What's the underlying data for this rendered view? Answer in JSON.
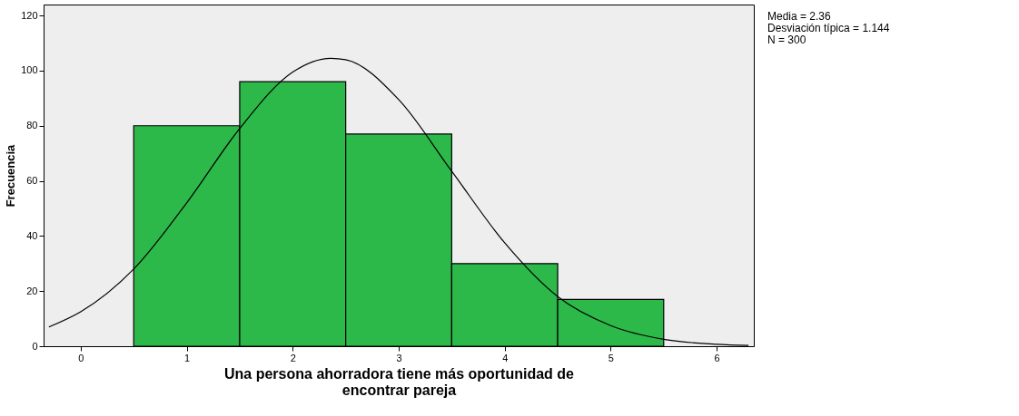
{
  "chart_data": {
    "type": "histogram",
    "xlabel": "Una persona ahorradora tiene más oportunidad de\nencontrar pareja",
    "ylabel": "Frecuencia",
    "bins": [
      0.5,
      1.5,
      2.5,
      3.5,
      4.5,
      5.5
    ],
    "values": [
      80,
      96,
      77,
      30,
      17
    ],
    "color": "#2db84a",
    "series": [
      {
        "type": "line",
        "color": "#000000",
        "x": [
          -0.3,
          0,
          0.5,
          1,
          1.5,
          2,
          2.36,
          2.5,
          3,
          3.5,
          4,
          4.5,
          5,
          5.5,
          6,
          6.3
        ],
        "values": [
          7,
          12.5,
          28,
          52,
          79,
          99.5,
          104.5,
          104,
          89.5,
          63.5,
          37.5,
          18,
          7.5,
          2.5,
          0.7,
          0.3
        ]
      }
    ],
    "xlim": [
      -0.35,
      6.35
    ],
    "xticks": [
      0,
      1,
      2,
      3,
      4,
      5,
      6
    ],
    "ylim": [
      0,
      124
    ],
    "yticks": [
      0,
      20,
      40,
      60,
      80,
      100,
      120
    ],
    "grid": false,
    "annotations": [
      "Media = 2.36",
      "Desviación típica = 1.144",
      "N = 300"
    ]
  }
}
